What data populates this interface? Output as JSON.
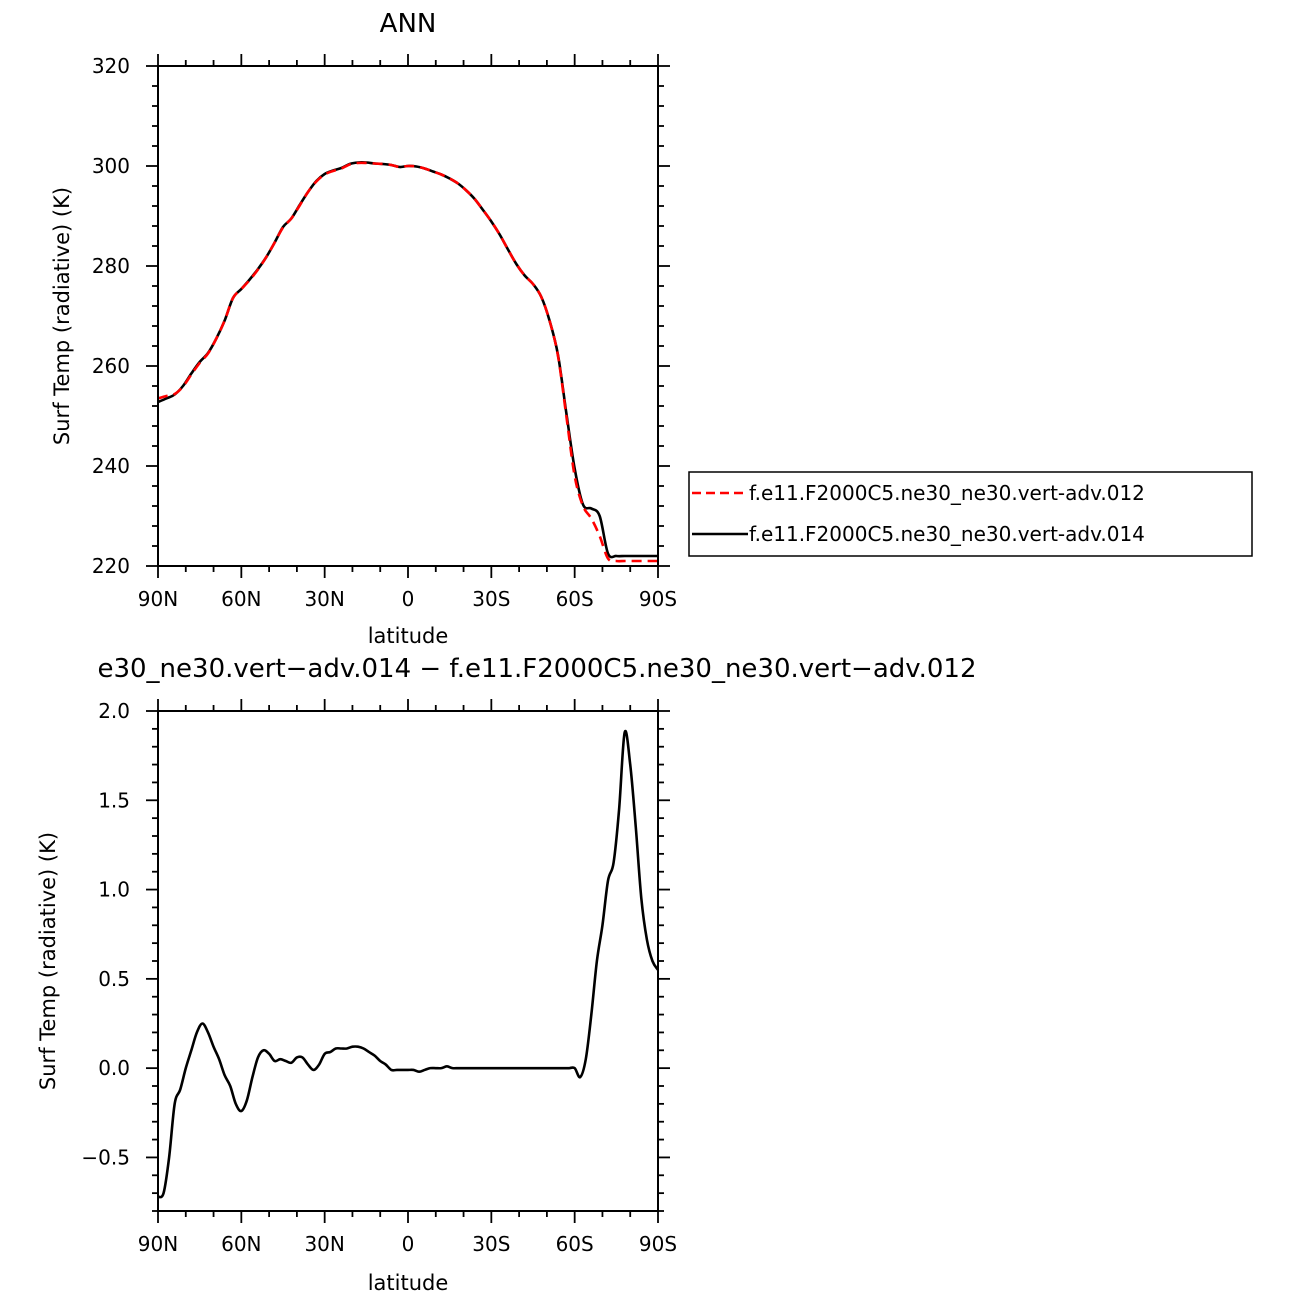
{
  "chart_data": [
    {
      "type": "line",
      "title": "ANN",
      "xlabel": "latitude",
      "ylabel": "Surf Temp (radiative) (K)",
      "xlim": [
        90,
        -90
      ],
      "ylim": [
        220,
        320
      ],
      "xticks": [
        {
          "value": 90,
          "label": "90N"
        },
        {
          "value": 60,
          "label": "60N"
        },
        {
          "value": 30,
          "label": "30N"
        },
        {
          "value": 0,
          "label": "0"
        },
        {
          "value": -30,
          "label": "30S"
        },
        {
          "value": -60,
          "label": "60S"
        },
        {
          "value": -90,
          "label": "90S"
        }
      ],
      "yticks": [
        {
          "value": 220,
          "label": "220"
        },
        {
          "value": 240,
          "label": "240"
        },
        {
          "value": 260,
          "label": "260"
        },
        {
          "value": 280,
          "label": "280"
        },
        {
          "value": 300,
          "label": "300"
        },
        {
          "value": 320,
          "label": "320"
        }
      ],
      "legend": "right",
      "series": [
        {
          "name": "f.e11.F2000C5.ne30_ne30.vert-adv.012",
          "color": "#ff0000",
          "dash": "dashed",
          "x": [
            90,
            87,
            84,
            81,
            78,
            75,
            72,
            69,
            66,
            63,
            60,
            57,
            54,
            51,
            48,
            45,
            42,
            39,
            36,
            33,
            30,
            27,
            24,
            21,
            18,
            15,
            12,
            9,
            6,
            3,
            0,
            -3,
            -6,
            -9,
            -12,
            -15,
            -18,
            -21,
            -24,
            -27,
            -30,
            -33,
            -36,
            -39,
            -42,
            -45,
            -48,
            -51,
            -54,
            -57,
            -60,
            -63,
            -66,
            -69,
            -72,
            -75,
            -78,
            -81,
            -84,
            -87,
            -90
          ],
          "y": [
            253.5,
            254.0,
            254.4,
            255.9,
            258.3,
            260.6,
            262.5,
            265.5,
            269.1,
            273.6,
            275.4,
            277.2,
            279.3,
            281.8,
            284.7,
            287.7,
            289.5,
            292.1,
            294.8,
            296.9,
            298.3,
            299.0,
            299.5,
            300.3,
            300.6,
            300.6,
            300.5,
            300.4,
            300.2,
            299.8,
            300.0,
            299.9,
            299.5,
            298.9,
            298.3,
            297.5,
            296.5,
            295.1,
            293.4,
            291.2,
            288.9,
            286.3,
            283.3,
            280.4,
            278.1,
            276.4,
            273.8,
            269.0,
            262.0,
            250.0,
            238.0,
            232.0,
            229.5,
            226.0,
            221.5,
            221.0,
            221.0,
            221.0,
            221.0,
            221.0,
            221.0
          ]
        },
        {
          "name": "f.e11.F2000C5.ne30_ne30.vert-adv.014",
          "color": "#000000",
          "dash": "solid",
          "x": [
            90,
            87,
            84,
            81,
            78,
            75,
            72,
            69,
            66,
            63,
            60,
            57,
            54,
            51,
            48,
            45,
            42,
            39,
            36,
            33,
            30,
            27,
            24,
            21,
            18,
            15,
            12,
            9,
            6,
            3,
            0,
            -3,
            -6,
            -9,
            -12,
            -15,
            -18,
            -21,
            -24,
            -27,
            -30,
            -33,
            -36,
            -39,
            -42,
            -45,
            -48,
            -51,
            -54,
            -57,
            -60,
            -63,
            -66,
            -69,
            -72,
            -75,
            -78,
            -81,
            -84,
            -87,
            -90
          ],
          "y": [
            252.8,
            253.5,
            254.3,
            256.0,
            258.5,
            260.8,
            262.6,
            265.5,
            269.1,
            273.6,
            275.4,
            277.3,
            279.4,
            281.8,
            284.7,
            287.8,
            289.5,
            292.2,
            294.8,
            297.0,
            298.4,
            299.1,
            299.6,
            300.4,
            300.7,
            300.7,
            300.5,
            300.4,
            300.2,
            299.8,
            300.0,
            299.9,
            299.5,
            298.9,
            298.3,
            297.5,
            296.5,
            295.1,
            293.4,
            291.2,
            288.9,
            286.3,
            283.3,
            280.4,
            278.1,
            276.4,
            273.8,
            269.0,
            262.2,
            250.6,
            239.5,
            232.3,
            231.5,
            230.0,
            222.5,
            222.0,
            222.0,
            222.0,
            222.0,
            222.0,
            222.0
          ]
        }
      ]
    },
    {
      "type": "line",
      "title": "e30_ne30.vert−adv.014 − f.e11.F2000C5.ne30_ne30.vert−adv.012",
      "xlabel": "latitude",
      "ylabel": "Surf Temp (radiative) (K)",
      "xlim": [
        90,
        -90
      ],
      "ylim": [
        -0.8,
        2.0
      ],
      "xticks": [
        {
          "value": 90,
          "label": "90N"
        },
        {
          "value": 60,
          "label": "60N"
        },
        {
          "value": 30,
          "label": "30N"
        },
        {
          "value": 0,
          "label": "0"
        },
        {
          "value": -30,
          "label": "30S"
        },
        {
          "value": -60,
          "label": "60S"
        },
        {
          "value": -90,
          "label": "90S"
        }
      ],
      "yticks": [
        {
          "value": -0.5,
          "label": "−0.5"
        },
        {
          "value": 0.0,
          "label": "0.0"
        },
        {
          "value": 0.5,
          "label": "0.5"
        },
        {
          "value": 1.0,
          "label": "1.0"
        },
        {
          "value": 1.5,
          "label": "1.5"
        },
        {
          "value": 2.0,
          "label": "2.0"
        }
      ],
      "series": [
        {
          "color": "#000000",
          "dash": "solid",
          "x": [
            90,
            88,
            86,
            84,
            82,
            80,
            78,
            76,
            74,
            72,
            70,
            68,
            66,
            64,
            62,
            60,
            58,
            56,
            54,
            52,
            50,
            48,
            46,
            44,
            42,
            40,
            38,
            36,
            34,
            32,
            30,
            28,
            26,
            24,
            22,
            20,
            18,
            16,
            14,
            12,
            10,
            8,
            6,
            4,
            2,
            0,
            -2,
            -4,
            -6,
            -8,
            -10,
            -12,
            -14,
            -16,
            -18,
            -20,
            -22,
            -24,
            -26,
            -28,
            -30,
            -32,
            -34,
            -36,
            -38,
            -40,
            -42,
            -44,
            -46,
            -48,
            -50,
            -52,
            -54,
            -56,
            -58,
            -60,
            -62,
            -64,
            -66,
            -68,
            -70,
            -72,
            -74,
            -76,
            -78,
            -80,
            -82,
            -84,
            -86,
            -88,
            -90
          ],
          "y": [
            -0.72,
            -0.7,
            -0.5,
            -0.2,
            -0.12,
            0.0,
            0.1,
            0.2,
            0.25,
            0.2,
            0.12,
            0.05,
            -0.04,
            -0.1,
            -0.2,
            -0.24,
            -0.18,
            -0.05,
            0.06,
            0.1,
            0.08,
            0.04,
            0.05,
            0.04,
            0.03,
            0.06,
            0.06,
            0.02,
            -0.01,
            0.02,
            0.08,
            0.09,
            0.11,
            0.11,
            0.11,
            0.12,
            0.12,
            0.11,
            0.09,
            0.07,
            0.04,
            0.02,
            -0.01,
            -0.01,
            -0.01,
            -0.01,
            -0.01,
            -0.02,
            -0.01,
            0.0,
            0.0,
            0.0,
            0.01,
            0.0,
            0.0,
            0.0,
            0.0,
            0.0,
            0.0,
            0.0,
            0.0,
            0.0,
            0.0,
            0.0,
            0.0,
            0.0,
            0.0,
            0.0,
            0.0,
            0.0,
            0.0,
            0.0,
            0.0,
            0.0,
            0.0,
            0.0,
            -0.05,
            0.05,
            0.3,
            0.6,
            0.8,
            1.05,
            1.15,
            1.45,
            1.88,
            1.7,
            1.35,
            0.95,
            0.72,
            0.6,
            0.55
          ]
        }
      ]
    }
  ]
}
